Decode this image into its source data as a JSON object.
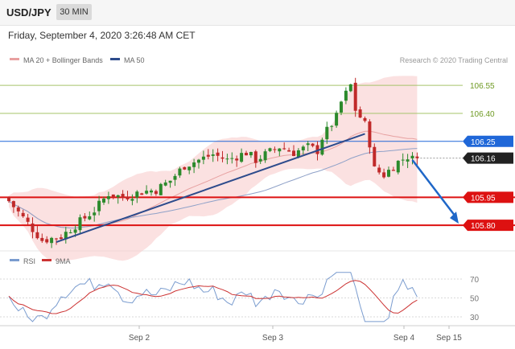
{
  "header": {
    "symbol": "USD/JPY",
    "timeframe": "30 MIN"
  },
  "chart_data": [
    {
      "type": "candlestick",
      "title": "Friday, September 4, 2020 3:26:48 AM CET",
      "credit": "Research © 2020 Trading Central",
      "legend": [
        {
          "name": "MA 20 + Bollinger Bands",
          "color": "#e8a0a0"
        },
        {
          "name": "MA 50",
          "color": "#2d4b8c"
        }
      ],
      "y_range": [
        105.68,
        106.62
      ],
      "levels": [
        {
          "label": "106.55",
          "value": 106.55,
          "kind": "resistance",
          "color": "#a6c46a"
        },
        {
          "label": "106.40",
          "value": 106.4,
          "kind": "resistance",
          "color": "#a6c46a"
        },
        {
          "label": "106.25",
          "value": 106.25,
          "kind": "pivot",
          "color": "#1f67d8"
        },
        {
          "label": "106.16",
          "value": 106.16,
          "kind": "last_price",
          "color": "#222222"
        },
        {
          "label": "105.95",
          "value": 105.95,
          "kind": "support",
          "color": "#dd1111"
        },
        {
          "label": "105.80",
          "value": 105.8,
          "kind": "support",
          "color": "#dd1111"
        }
      ],
      "trendline": {
        "from": {
          "bar": 10,
          "price": 105.71
        },
        "to": {
          "bar": 75,
          "price": 106.29
        }
      },
      "forecast_arrow": {
        "from": {
          "bar": 85,
          "price": 106.15
        },
        "to_target": 105.8
      },
      "bars": 87,
      "last_close": 106.16,
      "x_ticks": [
        "Sep 2",
        "Sep 3",
        "Sep 4",
        "Sep 15"
      ]
    },
    {
      "type": "line",
      "panel": "RSI",
      "legend": [
        {
          "name": "RSI",
          "color": "#7a9ccf"
        },
        {
          "name": "9MA",
          "color": "#cc3333"
        }
      ],
      "y_range": [
        20,
        80
      ],
      "levels": [
        70,
        50,
        30
      ],
      "y_tick_labels": [
        "70",
        "50",
        "30"
      ]
    }
  ]
}
